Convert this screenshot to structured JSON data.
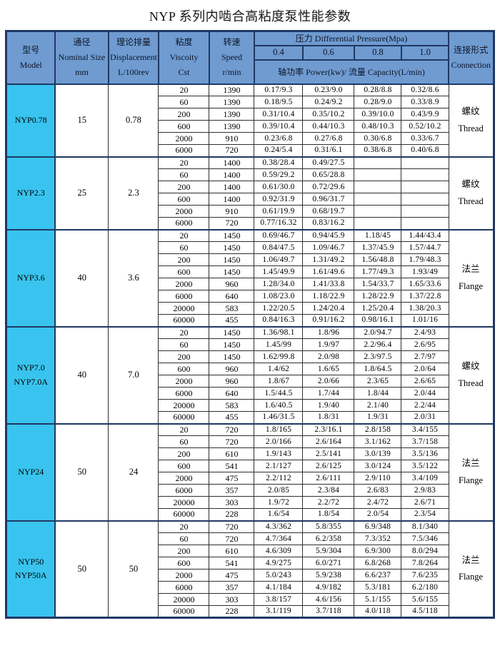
{
  "title": "NYP 系列内啮合高粘度泵性能参数",
  "colors": {
    "header_bg": "#6F9BD1",
    "model_cell_bg": "#38C4EE",
    "block_border": "#1F3864",
    "cell_border": "#2f2f2f"
  },
  "header": {
    "model": [
      "型号",
      "Model"
    ],
    "nominal": [
      "通径",
      "Nominal Size",
      "mm"
    ],
    "displacement": [
      "理论排量",
      "Displacement",
      "L/100rev"
    ],
    "viscosity": [
      "粘度",
      "Viscoity",
      "Cst"
    ],
    "speed": [
      "转速",
      "Speed",
      "r/min"
    ],
    "pressure": "压力 Differential Pressure(Mpa)",
    "pressure_values": [
      "0.4",
      "0.6",
      "0.8",
      "1.0"
    ],
    "power_capacity": "轴功率 Power(kw)/ 流量 Capacity(L/min)",
    "connection": [
      "连接形式",
      "Connection"
    ]
  },
  "blocks": [
    {
      "model": [
        "NYP0.78"
      ],
      "nominal": "15",
      "displacement": "0.78",
      "connection": [
        "螺纹",
        "Thread"
      ],
      "rows": [
        [
          "20",
          "1390",
          "0.17/9.3",
          "0.23/9.0",
          "0.28/8.8",
          "0.32/8.6"
        ],
        [
          "60",
          "1390",
          "0.18/9.5",
          "0.24/9.2",
          "0.28/9.0",
          "0.33/8.9"
        ],
        [
          "200",
          "1390",
          "0.31/10.4",
          "0.35/10.2",
          "0.39/10.0",
          "0.43/9.9"
        ],
        [
          "600",
          "1390",
          "0.39/10.4",
          "0.44/10.3",
          "0.48/10.3",
          "0.52/10.2"
        ],
        [
          "2000",
          "910",
          "0.23/6.8",
          "0.27/6.8",
          "0.30/6.8",
          "0.33/6.7"
        ],
        [
          "6000",
          "720",
          "0.24/5.4",
          "0.31/6.1",
          "0.38/6.8",
          "0.40/6.8"
        ]
      ]
    },
    {
      "model": [
        "NYP2.3"
      ],
      "nominal": "25",
      "displacement": "2.3",
      "connection": [
        "螺纹",
        "Thread"
      ],
      "rows": [
        [
          "20",
          "1400",
          "0.38/28.4",
          "0.49/27.5",
          "",
          ""
        ],
        [
          "60",
          "1400",
          "0.59/29.2",
          "0.65/28.8",
          "",
          ""
        ],
        [
          "200",
          "1400",
          "0.61/30.0",
          "0.72/29.6",
          "",
          ""
        ],
        [
          "600",
          "1400",
          "0.92/31.9",
          "0.96/31.7",
          "",
          ""
        ],
        [
          "2000",
          "910",
          "0.61/19.9",
          "0.68/19.7",
          "",
          ""
        ],
        [
          "6000",
          "720",
          "0.77/16.32",
          "0.83/16.2",
          "",
          ""
        ]
      ]
    },
    {
      "model": [
        "NYP3.6"
      ],
      "nominal": "40",
      "displacement": "3.6",
      "connection": [
        "法兰",
        "Flange"
      ],
      "rows": [
        [
          "20",
          "1450",
          "0.69/46.7",
          "0.94/45.9",
          "1.18/45",
          "1.44/43.4"
        ],
        [
          "60",
          "1450",
          "0.84/47.5",
          "1.09/46.7",
          "1.37/45.9",
          "1.57/44.7"
        ],
        [
          "200",
          "1450",
          "1.06/49.7",
          "1.31/49.2",
          "1.56/48.8",
          "1.79/48.3"
        ],
        [
          "600",
          "1450",
          "1.45/49.9",
          "1.61/49.6",
          "1.77/49.3",
          "1.93/49"
        ],
        [
          "2000",
          "960",
          "1.28/34.0",
          "1.41/33.8",
          "1.54/33.7",
          "1.65/33.6"
        ],
        [
          "6000",
          "640",
          "1.08/23.0",
          "1.18/22.9",
          "1.28/22.9",
          "1.37/22.8"
        ],
        [
          "20000",
          "583",
          "1.22/20.5",
          "1.24/20.4",
          "1.25/20.4",
          "1.38/20.3"
        ],
        [
          "60000",
          "455",
          "0.84/16.3",
          "0.91/16.2",
          "0.98/16.1",
          "1.01/16"
        ]
      ]
    },
    {
      "model": [
        "NYP7.0",
        "NYP7.0A"
      ],
      "nominal": "40",
      "displacement": "7.0",
      "connection": [
        "螺纹",
        "Thread"
      ],
      "rows": [
        [
          "20",
          "1450",
          "1.36/98.1",
          "1.8/96",
          "2.0/94.7",
          "2.4/93"
        ],
        [
          "60",
          "1450",
          "1.45/99",
          "1.9/97",
          "2.2/96.4",
          "2.6/95"
        ],
        [
          "200",
          "1450",
          "1.62/99.8",
          "2.0/98",
          "2.3/97.5",
          "2.7/97"
        ],
        [
          "600",
          "960",
          "1.4/62",
          "1.6/65",
          "1.8/64.5",
          "2.0/64"
        ],
        [
          "2000",
          "960",
          "1.8/67",
          "2.0/66",
          "2.3/65",
          "2.6/65"
        ],
        [
          "6000",
          "640",
          "1.5/44.5",
          "1.7/44",
          "1.8/44",
          "2.0/44"
        ],
        [
          "20000",
          "583",
          "1.6/40.5",
          "1.9/40",
          "2.1/40",
          "2.2/44"
        ],
        [
          "60000",
          "455",
          "1.46/31.5",
          "1.8/31",
          "1.9/31",
          "2.0/31"
        ]
      ]
    },
    {
      "model": [
        "NYP24"
      ],
      "nominal": "50",
      "displacement": "24",
      "connection": [
        "法兰",
        "Flange"
      ],
      "rows": [
        [
          "20",
          "720",
          "1.8/165",
          "2.3/16.1",
          "2.8/158",
          "3.4/155"
        ],
        [
          "60",
          "720",
          "2.0/166",
          "2.6/164",
          "3.1/162",
          "3.7/158"
        ],
        [
          "200",
          "610",
          "1.9/143",
          "2.5/141",
          "3.0/139",
          "3.5/136"
        ],
        [
          "600",
          "541",
          "2.1/127",
          "2.6/125",
          "3.0/124",
          "3.5/122"
        ],
        [
          "2000",
          "475",
          "2.2/112",
          "2.6/111",
          "2.9/110",
          "3.4/109"
        ],
        [
          "6000",
          "357",
          "2.0/85",
          "2.3/84",
          "2.6/83",
          "2.9/83"
        ],
        [
          "20000",
          "303",
          "1.9/72",
          "2.2/72",
          "2.4/72",
          "2.6/71"
        ],
        [
          "60000",
          "228",
          "1.6/54",
          "1.8/54",
          "2.0/54",
          "2.3/54"
        ]
      ]
    },
    {
      "model": [
        "NYP50",
        "NYP50A"
      ],
      "nominal": "50",
      "displacement": "50",
      "connection": [
        "法兰",
        "Flange"
      ],
      "rows": [
        [
          "20",
          "720",
          "4.3/362",
          "5.8/355",
          "6.9/348",
          "8.1/340"
        ],
        [
          "60",
          "720",
          "4.7/364",
          "6.2/358",
          "7.3/352",
          "7.5/346"
        ],
        [
          "200",
          "610",
          "4.6/309",
          "5.9/304",
          "6.9/300",
          "8.0/294"
        ],
        [
          "600",
          "541",
          "4.9/275",
          "6.0/271",
          "6.8/268",
          "7.8/264"
        ],
        [
          "2000",
          "475",
          "5.0/243",
          "5.9/238",
          "6.6/237",
          "7.6/235"
        ],
        [
          "6000",
          "357",
          "4.1/184",
          "4.9/182",
          "5.3/181",
          "6.2/180"
        ],
        [
          "20000",
          "303",
          "3.8/157",
          "4.6/156",
          "5.1/155",
          "5.6/155"
        ],
        [
          "60000",
          "228",
          "3.1/119",
          "3.7/118",
          "4.0/118",
          "4.5/118"
        ]
      ]
    }
  ]
}
